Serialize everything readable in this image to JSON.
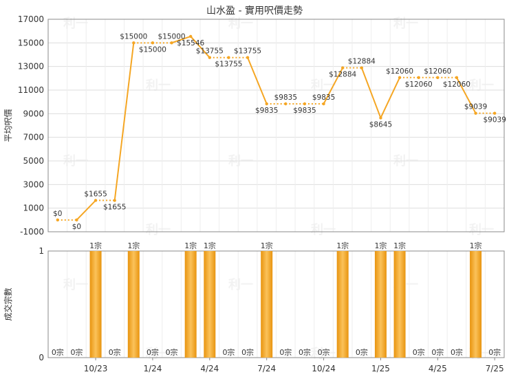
{
  "title": "山水盈 - 實用呎價走勢",
  "watermark_text": "利一",
  "colors": {
    "line": "#f5a623",
    "bar": "#f5a623",
    "grid": "#dddddd",
    "axis": "#888888",
    "text": "#333333"
  },
  "chart_data": [
    {
      "type": "line",
      "title": "山水盈 - 實用呎價走勢",
      "ylabel": "平均呎價",
      "ylim": [
        -1000,
        17000
      ],
      "yticks": [
        -1000,
        1000,
        3000,
        5000,
        7000,
        9000,
        11000,
        13000,
        15000,
        17000
      ],
      "grid": true,
      "x": [
        "2023-08",
        "2023-09",
        "2023-10",
        "2023-11",
        "2023-12",
        "2024-01",
        "2024-02",
        "2024-03",
        "2024-04",
        "2024-05",
        "2024-06",
        "2024-07",
        "2024-08",
        "2024-09",
        "2024-10",
        "2024-11",
        "2024-12",
        "2025-01",
        "2025-02",
        "2025-03",
        "2025-04",
        "2025-05",
        "2025-06",
        "2025-07"
      ],
      "values": [
        0,
        0,
        1655,
        1655,
        15000,
        15000,
        15000,
        15546,
        13755,
        13755,
        13755,
        9835,
        9835,
        9835,
        9835,
        12884,
        12884,
        8645,
        12060,
        12060,
        12060,
        12060,
        9039,
        9039
      ],
      "labels": [
        "$0",
        "$0",
        "$1655",
        "$1655",
        "$15000",
        "$15000",
        "$15000",
        "$15546",
        "$13755",
        "$13755",
        "$13755",
        "$9835",
        "$9835",
        "$9835",
        "$9835",
        "$12884",
        "$12884",
        "$8645",
        "$12060",
        "$12060",
        "$12060",
        "$12060",
        "$9039",
        "$9039"
      ],
      "dashed_segments": [
        0,
        2,
        4,
        5,
        8,
        9,
        11,
        12,
        13,
        15,
        18,
        19,
        20,
        22
      ]
    },
    {
      "type": "bar",
      "ylabel": "成交宗數",
      "ylim": [
        0,
        1
      ],
      "yticks": [
        0,
        1
      ],
      "x": [
        "2023-08",
        "2023-09",
        "2023-10",
        "2023-11",
        "2023-12",
        "2024-01",
        "2024-02",
        "2024-03",
        "2024-04",
        "2024-05",
        "2024-06",
        "2024-07",
        "2024-08",
        "2024-09",
        "2024-10",
        "2024-11",
        "2024-12",
        "2025-01",
        "2025-02",
        "2025-03",
        "2025-04",
        "2025-05",
        "2025-06",
        "2025-07"
      ],
      "values": [
        0,
        0,
        1,
        0,
        1,
        0,
        0,
        1,
        1,
        0,
        0,
        1,
        0,
        0,
        0,
        1,
        0,
        1,
        1,
        0,
        0,
        0,
        1,
        0
      ],
      "labels": [
        "0宗",
        "0宗",
        "1宗",
        "0宗",
        "1宗",
        "0宗",
        "0宗",
        "1宗",
        "1宗",
        "0宗",
        "0宗",
        "1宗",
        "0宗",
        "0宗",
        "0宗",
        "1宗",
        "0宗",
        "1宗",
        "1宗",
        "0宗",
        "0宗",
        "0宗",
        "1宗",
        "0宗"
      ],
      "xtick_labels": [
        "10/23",
        "1/24",
        "4/24",
        "7/24",
        "10/24",
        "1/25",
        "4/25",
        "7/25"
      ],
      "xtick_index": [
        2,
        5,
        8,
        11,
        14,
        17,
        20,
        23
      ]
    }
  ]
}
